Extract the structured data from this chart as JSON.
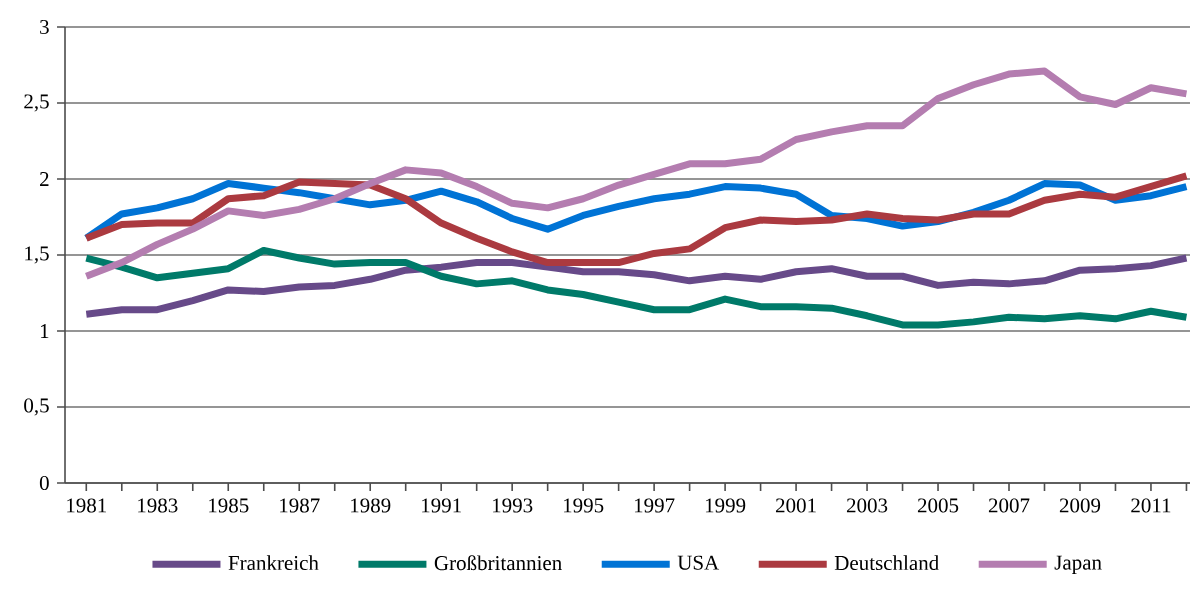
{
  "chart_data": {
    "type": "line",
    "x": [
      1981,
      1982,
      1983,
      1984,
      1985,
      1986,
      1987,
      1988,
      1989,
      1990,
      1991,
      1992,
      1993,
      1994,
      1995,
      1996,
      1997,
      1998,
      1999,
      2000,
      2001,
      2002,
      2003,
      2004,
      2005,
      2006,
      2007,
      2008,
      2009,
      2010,
      2011,
      2012
    ],
    "series": [
      {
        "name": "Frankreich",
        "color": "#674a89",
        "values": [
          1.11,
          1.14,
          1.14,
          1.2,
          1.27,
          1.26,
          1.29,
          1.3,
          1.34,
          1.4,
          1.42,
          1.45,
          1.45,
          1.42,
          1.39,
          1.39,
          1.37,
          1.33,
          1.36,
          1.34,
          1.39,
          1.41,
          1.36,
          1.36,
          1.3,
          1.32,
          1.31,
          1.33,
          1.4,
          1.41,
          1.43,
          1.48
        ]
      },
      {
        "name": "Großbritannien",
        "color": "#007a69",
        "values": [
          1.48,
          1.42,
          1.35,
          1.38,
          1.41,
          1.53,
          1.48,
          1.44,
          1.45,
          1.45,
          1.36,
          1.31,
          1.33,
          1.27,
          1.24,
          1.19,
          1.14,
          1.14,
          1.21,
          1.16,
          1.16,
          1.15,
          1.1,
          1.04,
          1.04,
          1.06,
          1.09,
          1.08,
          1.1,
          1.08,
          1.13,
          1.09
        ]
      },
      {
        "name": "USA",
        "color": "#0073d5",
        "values": [
          1.61,
          1.77,
          1.81,
          1.87,
          1.97,
          1.94,
          1.91,
          1.87,
          1.83,
          1.86,
          1.92,
          1.85,
          1.74,
          1.67,
          1.76,
          1.82,
          1.87,
          1.9,
          1.95,
          1.94,
          1.9,
          1.76,
          1.74,
          1.69,
          1.72,
          1.78,
          1.86,
          1.97,
          1.96,
          1.86,
          1.89,
          1.95
        ]
      },
      {
        "name": "Deutschland",
        "color": "#ab3a40",
        "values": [
          1.61,
          1.7,
          1.71,
          1.71,
          1.87,
          1.89,
          1.98,
          1.97,
          1.96,
          1.87,
          1.71,
          1.61,
          1.52,
          1.45,
          1.45,
          1.45,
          1.51,
          1.54,
          1.68,
          1.73,
          1.72,
          1.73,
          1.77,
          1.74,
          1.73,
          1.77,
          1.77,
          1.86,
          1.9,
          1.88,
          1.95,
          2.02
        ]
      },
      {
        "name": "Japan",
        "color": "#b47db0",
        "values": [
          1.36,
          1.45,
          1.57,
          1.67,
          1.79,
          1.76,
          1.8,
          1.87,
          1.97,
          2.06,
          2.04,
          1.95,
          1.84,
          1.81,
          1.87,
          1.96,
          2.03,
          2.1,
          2.1,
          2.13,
          2.26,
          2.31,
          2.35,
          2.35,
          2.53,
          2.62,
          2.69,
          2.71,
          2.54,
          2.49,
          2.6,
          2.56
        ]
      }
    ],
    "xlim": [
      1980.4,
      2012.1
    ],
    "xticks": [
      1981,
      {
        "value": 1982,
        "label": null
      },
      1983,
      {
        "value": 1984,
        "label": null
      },
      1985,
      {
        "value": 1986,
        "label": null
      },
      1987,
      {
        "value": 1988,
        "label": null
      },
      1989,
      {
        "value": 1990,
        "label": null
      },
      1991,
      {
        "value": 1992,
        "label": null
      },
      1993,
      {
        "value": 1994,
        "label": null
      },
      1995,
      {
        "value": 1996,
        "label": null
      },
      1997,
      {
        "value": 1998,
        "label": null
      },
      1999,
      {
        "value": 2000,
        "label": null
      },
      2001,
      {
        "value": 2002,
        "label": null
      },
      2003,
      {
        "value": 2004,
        "label": null
      },
      2005,
      {
        "value": 2006,
        "label": null
      },
      2007,
      {
        "value": 2008,
        "label": null
      },
      2009,
      {
        "value": 2010,
        "label": null
      },
      2011,
      {
        "value": 2012,
        "label": null
      }
    ],
    "ylim": [
      0,
      3
    ],
    "yticks": [
      0,
      {
        "value": 0.5,
        "label": "0,5"
      },
      1,
      {
        "value": 1.5,
        "label": "1,5"
      },
      2,
      {
        "value": 2.5,
        "label": "2,5"
      },
      3
    ],
    "grid": "y",
    "legend": "bottom",
    "marker": "none",
    "line_style": "solid"
  }
}
